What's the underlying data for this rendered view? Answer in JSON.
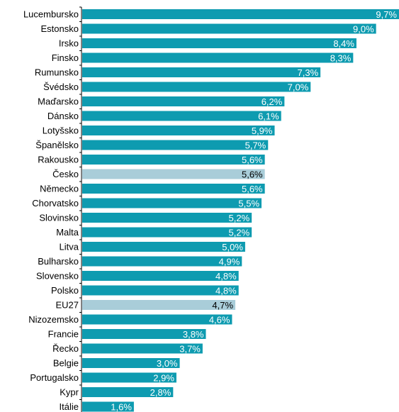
{
  "chart_data": {
    "type": "bar",
    "orientation": "horizontal",
    "categories": [
      "Lucembursko",
      "Estonsko",
      "Irsko",
      "Finsko",
      "Rumunsko",
      "Švédsko",
      "Maďarsko",
      "Dánsko",
      "Lotyšsko",
      "Španělsko",
      "Rakousko",
      "Česko",
      "Německo",
      "Chorvatsko",
      "Slovinsko",
      "Malta",
      "Litva",
      "Bulharsko",
      "Slovensko",
      "Polsko",
      "EU27",
      "Nizozemsko",
      "Francie",
      "Řecko",
      "Belgie",
      "Portugalsko",
      "Kypr",
      "Itálie"
    ],
    "values": [
      9.7,
      9.0,
      8.4,
      8.3,
      7.3,
      7.0,
      6.2,
      6.1,
      5.9,
      5.7,
      5.6,
      5.6,
      5.6,
      5.5,
      5.2,
      5.2,
      5.0,
      4.9,
      4.8,
      4.8,
      4.7,
      4.6,
      3.8,
      3.7,
      3.0,
      2.9,
      2.8,
      1.6
    ],
    "value_labels": [
      "9,7%",
      "9,0%",
      "8,4%",
      "8,3%",
      "7,3%",
      "7,0%",
      "6,2%",
      "6,1%",
      "5,9%",
      "5,7%",
      "5,6%",
      "5,6%",
      "5,6%",
      "5,5%",
      "5,2%",
      "5,2%",
      "5,0%",
      "4,9%",
      "4,8%",
      "4,8%",
      "4,7%",
      "4,6%",
      "3,8%",
      "3,7%",
      "3,0%",
      "2,9%",
      "2,8%",
      "1,6%"
    ],
    "highlighted": [
      "Česko",
      "EU27"
    ],
    "xlim": [
      0,
      9.7
    ],
    "grid": false,
    "colors": {
      "bar": "#0e9bb0",
      "highlight": "#a9cdd9",
      "label_on_bar": "#ffffff",
      "label_on_highlight": "#000000",
      "axis": "#000000"
    }
  }
}
